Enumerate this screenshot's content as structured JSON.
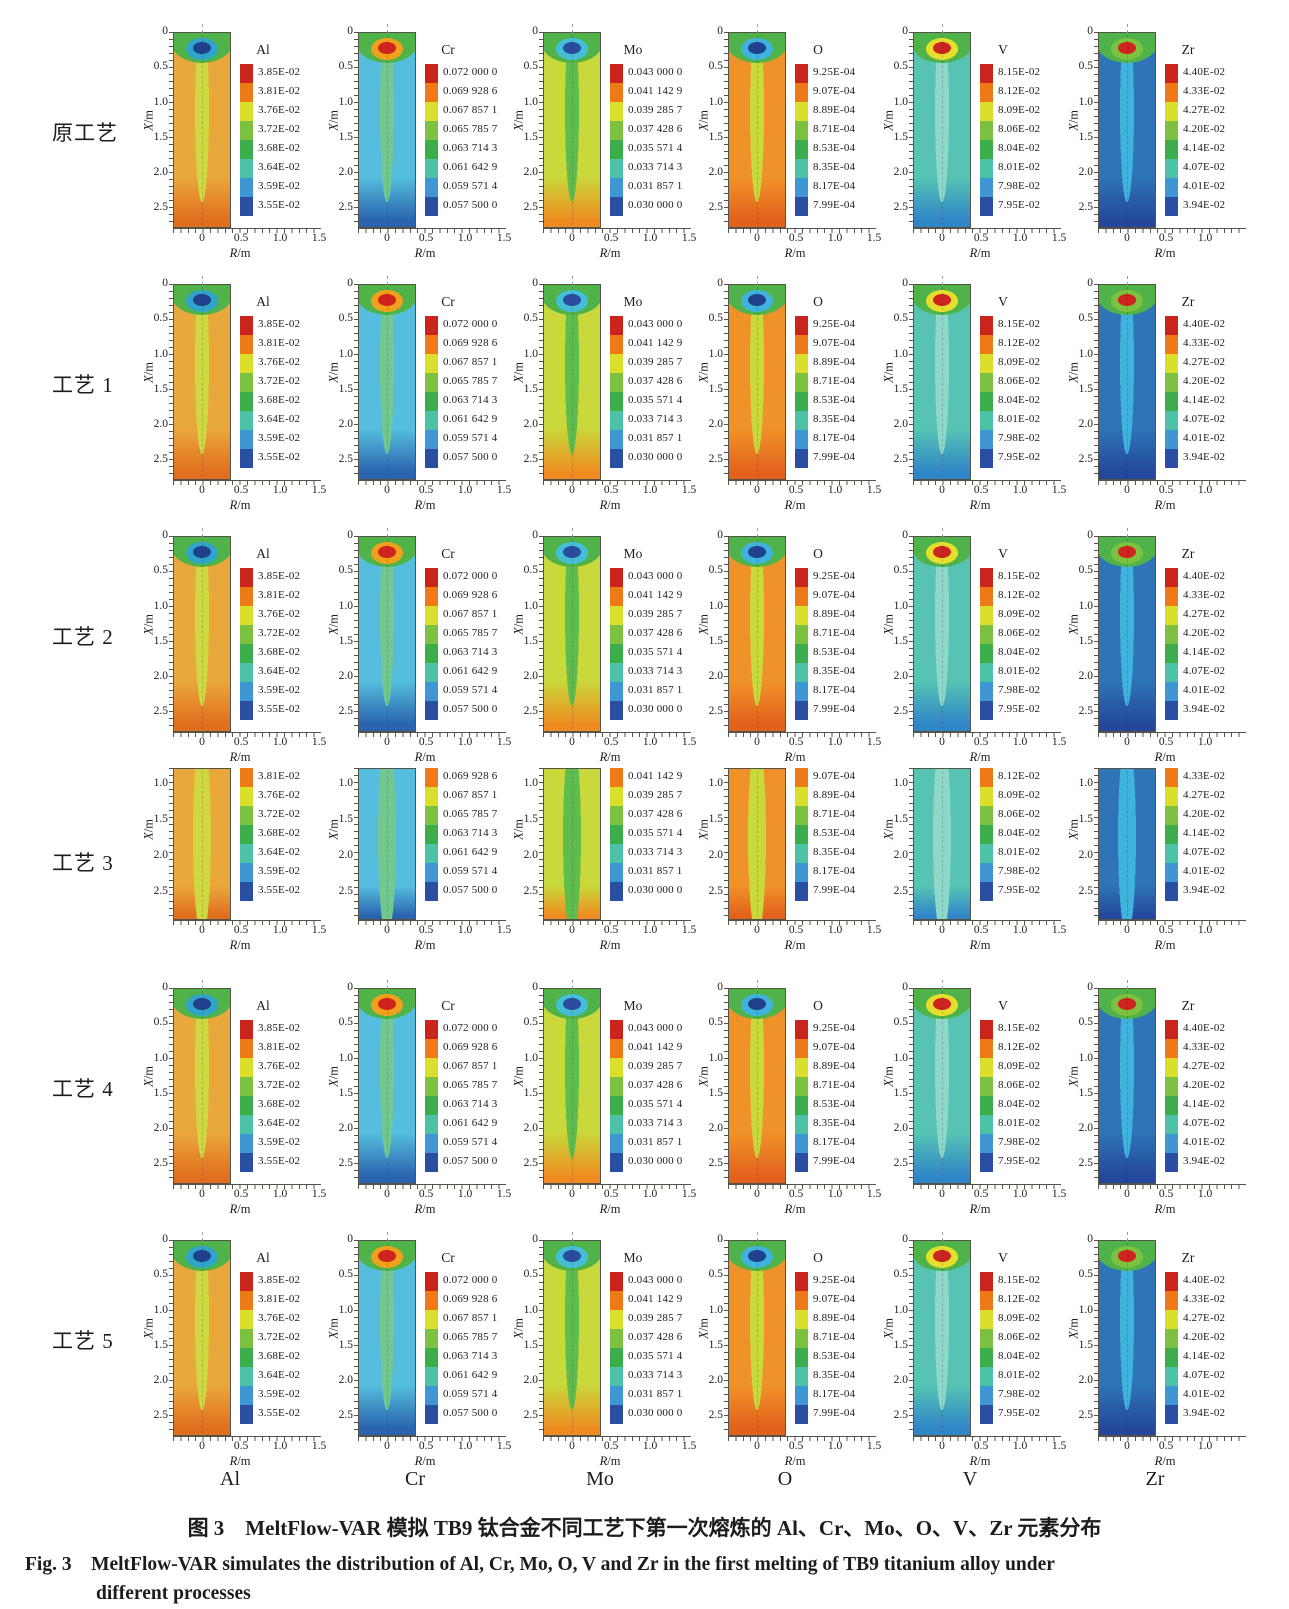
{
  "figure": {
    "rows": [
      {
        "label": "原工艺",
        "cropped": false
      },
      {
        "label": "工艺 1",
        "cropped": false
      },
      {
        "label": "工艺 2",
        "cropped": false
      },
      {
        "label": "工艺 3",
        "cropped": true
      },
      {
        "label": "工艺 4",
        "cropped": false
      },
      {
        "label": "工艺 5",
        "cropped": false
      }
    ],
    "axis": {
      "y_letter": "X",
      "y_rest": "/m",
      "x_letter": "R",
      "x_rest": "/m",
      "y_ticks": [
        "0",
        "0.5",
        "1.0",
        "1.5",
        "2.0",
        "2.5"
      ],
      "y_ticks_cropped": [
        "1.0",
        "1.5",
        "2.0",
        "2.5"
      ]
    },
    "colorbar_palette": [
      "#C9251D",
      "#ED7A17",
      "#D9DF2A",
      "#7CC240",
      "#3BAD4A",
      "#4CC3A6",
      "#3E96D3",
      "#2A4FA2"
    ],
    "columns": [
      {
        "element": "Al",
        "colorbar_labels": [
          "3.85E-02",
          "3.81E-02",
          "3.76E-02",
          "3.72E-02",
          "3.68E-02",
          "3.64E-02",
          "3.59E-02",
          "3.55E-02"
        ],
        "x_ticks": [
          "0",
          "0.5",
          "1.0",
          "1.5"
        ],
        "colors": {
          "body": "#E9A83C",
          "edge": "#E06E1F",
          "streak": "#CFD93F",
          "cap": "#4FB34A",
          "ring": "#2FA6C9",
          "core": "#21418F"
        }
      },
      {
        "element": "Cr",
        "colorbar_labels": [
          "0.072 000 0",
          "0.069 928 6",
          "0.067 857 1",
          "0.065 785 7",
          "0.063 714 3",
          "0.061 642 9",
          "0.059 571 4",
          "0.057 500 0"
        ],
        "x_ticks": [
          "0",
          "0.5",
          "1.0",
          "1.5"
        ],
        "colors": {
          "body": "#55BEDF",
          "edge": "#2A63AE",
          "streak": "#72C88F",
          "cap": "#4FB34A",
          "ring": "#EFA11C",
          "core": "#CE231E"
        }
      },
      {
        "element": "Mo",
        "colorbar_labels": [
          "0.043 000 0",
          "0.041 142 9",
          "0.039 285 7",
          "0.037 428 6",
          "0.035 571 4",
          "0.033 714 3",
          "0.031 857 1",
          "0.030 000 0"
        ],
        "x_ticks": [
          "0",
          "0.5",
          "1.0",
          "1.5"
        ],
        "colors": {
          "body": "#C9D83A",
          "edge": "#EF8B21",
          "streak": "#5FBD4D",
          "cap": "#4FB34A",
          "ring": "#45BFD8",
          "core": "#2A4CA0"
        }
      },
      {
        "element": "O",
        "colorbar_labels": [
          "9.25E-04",
          "9.07E-04",
          "8.89E-04",
          "8.71E-04",
          "8.53E-04",
          "8.35E-04",
          "8.17E-04",
          "7.99E-04"
        ],
        "x_ticks": [
          "0",
          "0.5",
          "1.0",
          "1.5"
        ],
        "colors": {
          "body": "#F0922A",
          "edge": "#E2611C",
          "streak": "#C9D83A",
          "cap": "#4FB34A",
          "ring": "#3FB3DC",
          "core": "#21418F"
        }
      },
      {
        "element": "V",
        "colorbar_labels": [
          "8.15E-02",
          "8.12E-02",
          "8.09E-02",
          "8.06E-02",
          "8.04E-02",
          "8.01E-02",
          "7.98E-02",
          "7.95E-02"
        ],
        "x_ticks": [
          "0",
          "0.5",
          "1.0",
          "1.5"
        ],
        "colors": {
          "body": "#57C3B3",
          "edge": "#2F86C7",
          "streak": "#8ED8C9",
          "cap": "#4FB34A",
          "ring": "#E5DF2B",
          "core": "#CE231E"
        }
      },
      {
        "element": "Zr",
        "colorbar_labels": [
          "4.40E-02",
          "4.33E-02",
          "4.27E-02",
          "4.20E-02",
          "4.14E-02",
          "4.07E-02",
          "4.01E-02",
          "3.94E-02"
        ],
        "x_ticks": [
          "0",
          "0.5",
          "1.0"
        ],
        "colors": {
          "body": "#2E74B7",
          "edge": "#24479B",
          "streak": "#3FB3DC",
          "cap": "#4FB34A",
          "ring": "#7CC240",
          "core": "#CE231E"
        }
      }
    ],
    "caption": {
      "zh": "图 3　MeltFlow-VAR 模拟 TB9 钛合金不同工艺下第一次熔炼的 Al、Cr、Mo、O、V、Zr 元素分布",
      "en_line1": "Fig. 3　MeltFlow-VAR simulates the distribution of Al, Cr, Mo, O, V and Zr in the first melting of TB9 titanium alloy under",
      "en_line2": "different processes"
    }
  },
  "chart_data": {
    "type": "heatmap",
    "subtype": "contour-grid",
    "title": "MeltFlow-VAR simulated element distribution in VAR ingot (first melting of TB9 titanium alloy)",
    "grid": {
      "rows": [
        "原工艺",
        "工艺 1",
        "工艺 2",
        "工艺 3",
        "工艺 4",
        "工艺 5"
      ],
      "columns": [
        "Al",
        "Cr",
        "Mo",
        "O",
        "V",
        "Zr"
      ]
    },
    "x_axis": {
      "label": "R/m",
      "ticks": [
        0,
        0.5,
        1.0,
        1.5
      ],
      "ticks_Zr_column": [
        0,
        0.5,
        1.0
      ]
    },
    "y_axis": {
      "label": "X/m",
      "ticks": [
        0,
        0.5,
        1.0,
        1.5,
        2.0,
        2.5
      ],
      "direction": "downward"
    },
    "colorbar_scales": {
      "Al": [
        0.0385,
        0.0381,
        0.0376,
        0.0372,
        0.0368,
        0.0364,
        0.0359,
        0.0355
      ],
      "Cr": [
        0.072,
        0.0699286,
        0.0678571,
        0.0657857,
        0.0637143,
        0.0616429,
        0.0595714,
        0.0575
      ],
      "Mo": [
        0.043,
        0.0411429,
        0.0392857,
        0.0374286,
        0.0355714,
        0.0337143,
        0.0318571,
        0.03
      ],
      "O": [
        0.000925,
        0.000907,
        0.000889,
        0.000871,
        0.000853,
        0.000835,
        0.000817,
        0.000799
      ],
      "V": [
        0.0815,
        0.0812,
        0.0809,
        0.0806,
        0.0804,
        0.0801,
        0.0798,
        0.0795
      ],
      "Zr": [
        0.044,
        0.0433,
        0.0427,
        0.042,
        0.0414,
        0.0407,
        0.0401,
        0.0394
      ]
    },
    "notes": "36 contour subplots (6 processes x 6 elements). Row 工艺 3 is cropped: X axis starts near 1.0 and its colorbars show only the lower seven levels without element titles."
  }
}
